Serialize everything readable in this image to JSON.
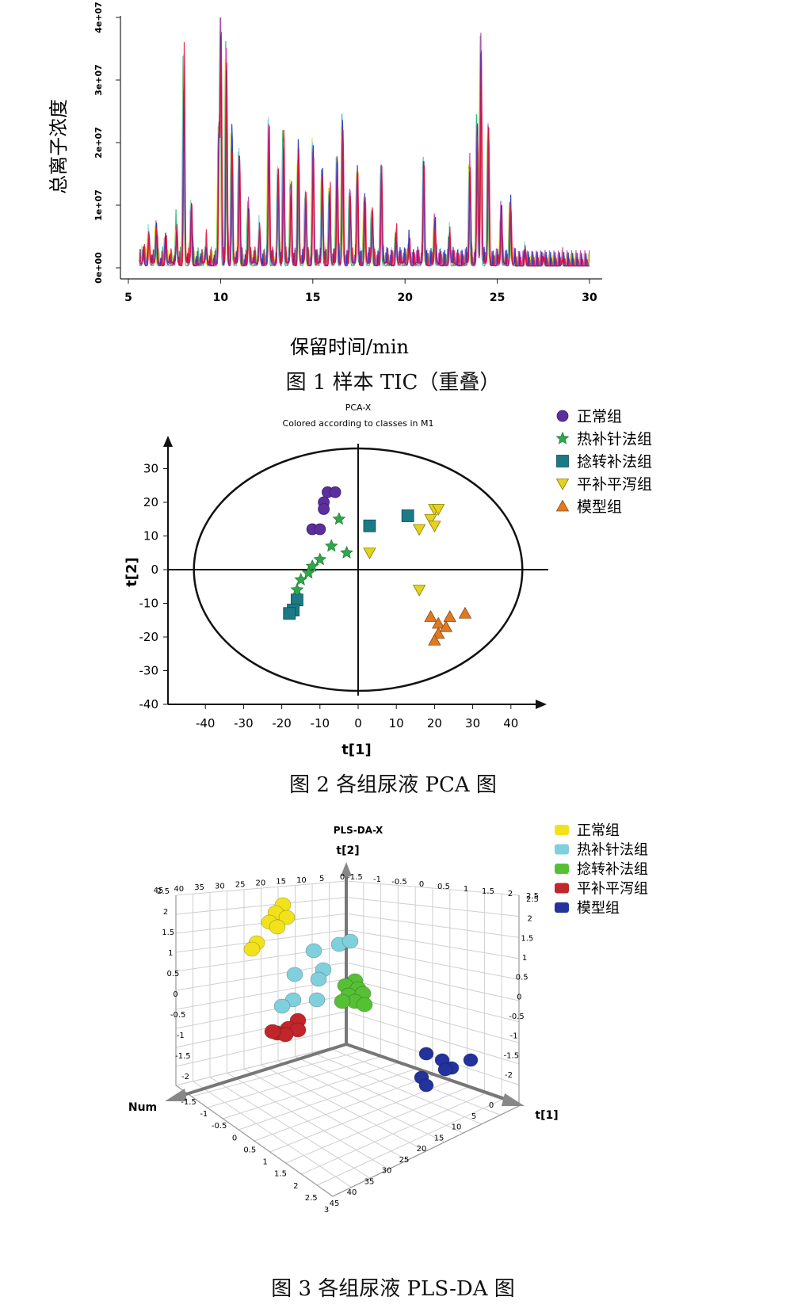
{
  "figure1": {
    "caption": "图 1   样本 TIC（重叠）",
    "chart_data": {
      "type": "line",
      "xlabel": "保留时间/min",
      "ylabel": "总离子浓度",
      "xlim": [
        5,
        30
      ],
      "ylim": [
        0,
        40000000
      ],
      "x_ticks": [
        "5",
        "10",
        "15",
        "20",
        "25",
        "30"
      ],
      "y_ticks": [
        "0e+00",
        "1e+07",
        "2e+07",
        "3e+07",
        "4e+07"
      ],
      "series_colors": [
        "#e8133c",
        "#1d2fb5",
        "#c03ab0",
        "#f2e21b",
        "#1fb07a",
        "#7fd4e8"
      ],
      "peaks": [
        {
          "x": 5.8,
          "y": 2000000
        },
        {
          "x": 6.1,
          "y": 5000000
        },
        {
          "x": 6.5,
          "y": 6000000
        },
        {
          "x": 7.0,
          "y": 4000000
        },
        {
          "x": 7.6,
          "y": 6500000
        },
        {
          "x": 8.0,
          "y": 34000000
        },
        {
          "x": 8.4,
          "y": 10000000
        },
        {
          "x": 9.2,
          "y": 3000000
        },
        {
          "x": 9.9,
          "y": 22000000
        },
        {
          "x": 10.0,
          "y": 40000000
        },
        {
          "x": 10.3,
          "y": 37000000
        },
        {
          "x": 10.6,
          "y": 22000000
        },
        {
          "x": 11.0,
          "y": 20000000
        },
        {
          "x": 11.5,
          "y": 10000000
        },
        {
          "x": 12.1,
          "y": 6000000
        },
        {
          "x": 12.6,
          "y": 24000000
        },
        {
          "x": 13.1,
          "y": 16000000
        },
        {
          "x": 13.4,
          "y": 22000000
        },
        {
          "x": 13.8,
          "y": 14000000
        },
        {
          "x": 14.2,
          "y": 19000000
        },
        {
          "x": 14.6,
          "y": 12000000
        },
        {
          "x": 15.0,
          "y": 20000000
        },
        {
          "x": 15.5,
          "y": 16000000
        },
        {
          "x": 15.9,
          "y": 14000000
        },
        {
          "x": 16.3,
          "y": 18000000
        },
        {
          "x": 16.6,
          "y": 24000000
        },
        {
          "x": 17.0,
          "y": 12000000
        },
        {
          "x": 17.4,
          "y": 16000000
        },
        {
          "x": 17.8,
          "y": 11000000
        },
        {
          "x": 18.2,
          "y": 9000000
        },
        {
          "x": 18.7,
          "y": 16000000
        },
        {
          "x": 19.5,
          "y": 5000000
        },
        {
          "x": 20.2,
          "y": 3500000
        },
        {
          "x": 21.0,
          "y": 18000000
        },
        {
          "x": 21.6,
          "y": 7000000
        },
        {
          "x": 22.4,
          "y": 5000000
        },
        {
          "x": 23.5,
          "y": 18000000
        },
        {
          "x": 23.9,
          "y": 24000000
        },
        {
          "x": 24.1,
          "y": 37000000
        },
        {
          "x": 24.5,
          "y": 23000000
        },
        {
          "x": 25.2,
          "y": 9000000
        },
        {
          "x": 25.7,
          "y": 10000000
        },
        {
          "x": 26.5,
          "y": 2500000
        },
        {
          "x": 27.5,
          "y": 1500000
        },
        {
          "x": 28.5,
          "y": 1000000
        }
      ]
    }
  },
  "figure2": {
    "caption": "图 2    各组尿液 PCA 图",
    "chart_data": {
      "type": "scatter",
      "title": "PCA-X",
      "subtitle": "Colored according to classes in M1",
      "xlabel": "t[1]",
      "ylabel": "t[2]",
      "xlim": [
        -50,
        50
      ],
      "ylim": [
        -40,
        40
      ],
      "x_ticks": [
        "-40",
        "-30",
        "-20",
        "-10",
        "0",
        "10",
        "20",
        "30",
        "40"
      ],
      "y_ticks": [
        "30",
        "20",
        "10",
        "0",
        "-10",
        "-20",
        "-30",
        "-40"
      ],
      "ellipse": {
        "a": 43,
        "b": 36
      },
      "legend_position": "top-right",
      "series": [
        {
          "name": "正常组",
          "marker": "circle",
          "color": "#5b2f9e",
          "points": [
            [
              -8,
              23
            ],
            [
              -6,
              23
            ],
            [
              -9,
              20
            ],
            [
              -9,
              18
            ],
            [
              -12,
              12
            ],
            [
              -10,
              12
            ]
          ]
        },
        {
          "name": "热补针法组",
          "marker": "star",
          "color": "#2ea84a",
          "points": [
            [
              -5,
              15
            ],
            [
              -7,
              7
            ],
            [
              -3,
              5
            ],
            [
              -10,
              3
            ],
            [
              -12,
              1
            ],
            [
              -13,
              -1
            ],
            [
              -15,
              -3
            ],
            [
              -16,
              -6
            ]
          ]
        },
        {
          "name": "捻转补法组",
          "marker": "square",
          "color": "#1b7a86",
          "points": [
            [
              3,
              13
            ],
            [
              13,
              16
            ],
            [
              -16,
              -9
            ],
            [
              -17,
              -12
            ],
            [
              -18,
              -13
            ]
          ]
        },
        {
          "name": "平补平泻组",
          "marker": "triangle-down",
          "color": "#e5d21b",
          "points": [
            [
              20,
              18
            ],
            [
              21,
              18
            ],
            [
              19,
              15
            ],
            [
              20,
              13
            ],
            [
              16,
              12
            ],
            [
              3,
              5
            ],
            [
              16,
              -6
            ]
          ]
        },
        {
          "name": "模型组",
          "marker": "triangle-up",
          "color": "#e07a22",
          "points": [
            [
              19,
              -14
            ],
            [
              24,
              -14
            ],
            [
              28,
              -13
            ],
            [
              21,
              -16
            ],
            [
              23,
              -17
            ],
            [
              21,
              -19
            ],
            [
              20,
              -21
            ]
          ]
        }
      ]
    }
  },
  "figure3": {
    "caption": "图 3    各组尿液 PLS-DA 图",
    "chart_data": {
      "type": "scatter",
      "title": "PLS-DA-X",
      "axes": {
        "x": "t[1]",
        "y": "t[2]",
        "z": "Num"
      },
      "top_ticks": [
        "45",
        "40",
        "35",
        "30",
        "25",
        "20",
        "15",
        "10",
        "5",
        "0",
        "-1.5",
        "-1",
        "-0.5",
        "0",
        "0.5",
        "1",
        "1.5",
        "2",
        "2.5"
      ],
      "left_ticks": [
        "2.5",
        "2",
        "1.5",
        "1",
        "0.5",
        "0",
        "-0.5",
        "-1",
        "-1.5",
        "-2"
      ],
      "right_ticks": [
        "2.5",
        "2",
        "1.5",
        "1",
        "0.5",
        "0",
        "-0.5",
        "-1",
        "-1.5",
        "-2"
      ],
      "num_ticks": [
        "-1.5",
        "-1",
        "-0.5",
        "0",
        "0.5",
        "1",
        "1.5",
        "2",
        "2.5",
        "3"
      ],
      "t1_ticks": [
        "0",
        "5",
        "10",
        "15",
        "20",
        "25",
        "30",
        "35",
        "40",
        "45"
      ],
      "legend_position": "top-right",
      "series": [
        {
          "name": "正常组",
          "color": "#f2e21b",
          "n": 7
        },
        {
          "name": "热补针法组",
          "color": "#7fd0dc",
          "n": 9
        },
        {
          "name": "捻转补法组",
          "color": "#56c034",
          "n": 8
        },
        {
          "name": "平补平泻组",
          "color": "#c0262a",
          "n": 6
        },
        {
          "name": "模型组",
          "color": "#23329c",
          "n": 7
        }
      ]
    }
  }
}
